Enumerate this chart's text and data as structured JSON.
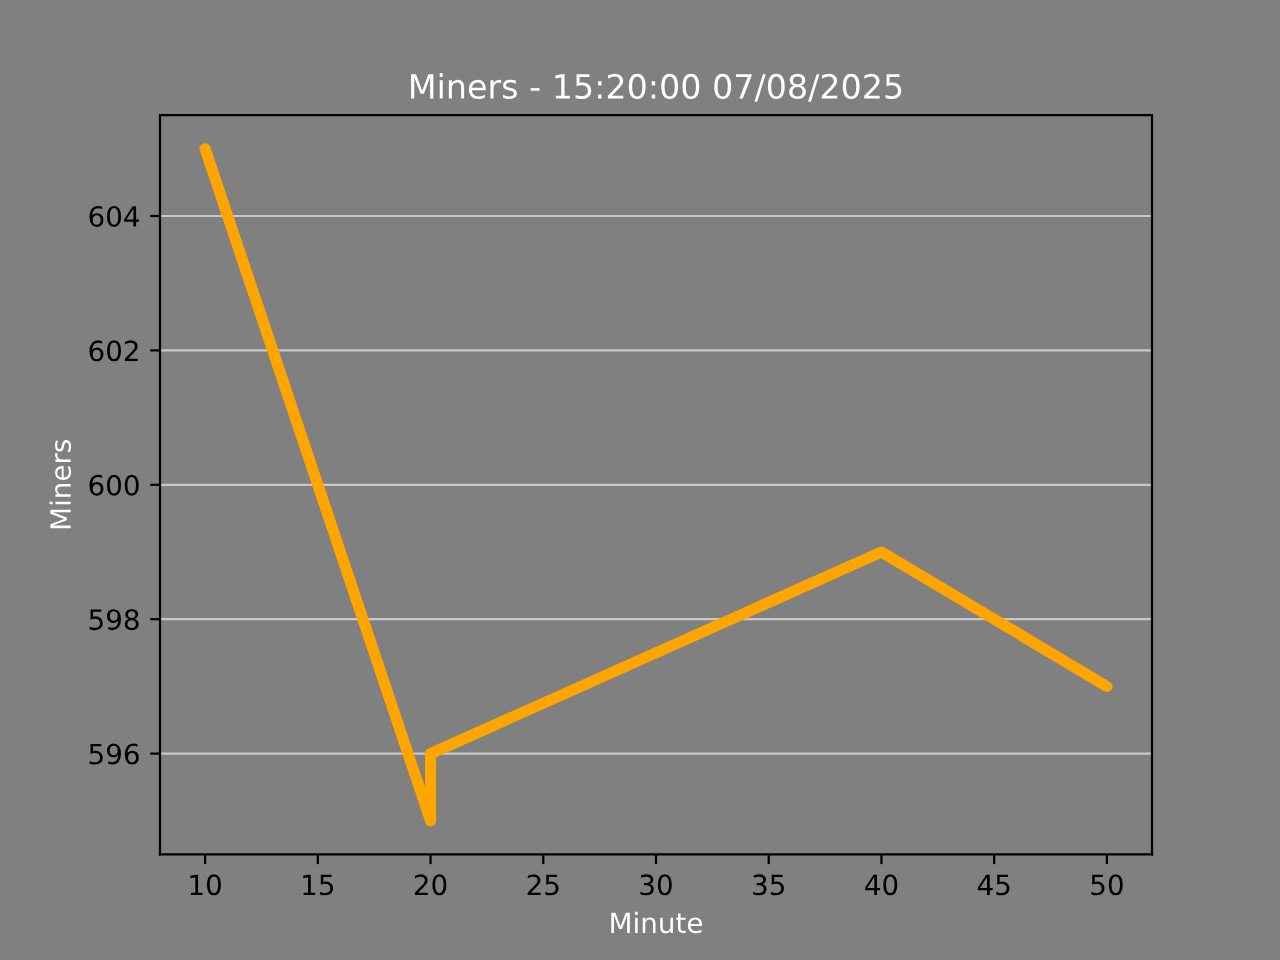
{
  "chart_data": {
    "type": "line",
    "title": "Miners - 15:20:00 07/08/2025",
    "xlabel": "Minute",
    "ylabel": "Miners",
    "series": [
      {
        "color": "#ffa500",
        "x": [
          10,
          20,
          20,
          40,
          50
        ],
        "values": [
          605,
          595,
          596,
          599,
          597
        ]
      }
    ],
    "xlim": [
      8,
      52
    ],
    "xticks": [
      10,
      15,
      20,
      25,
      30,
      35,
      40,
      45,
      50
    ],
    "ylim": [
      594.5,
      605.5
    ],
    "yticks": [
      596,
      598,
      600,
      602,
      604
    ],
    "grid": "y",
    "line_style": "solid",
    "marker": "none"
  }
}
